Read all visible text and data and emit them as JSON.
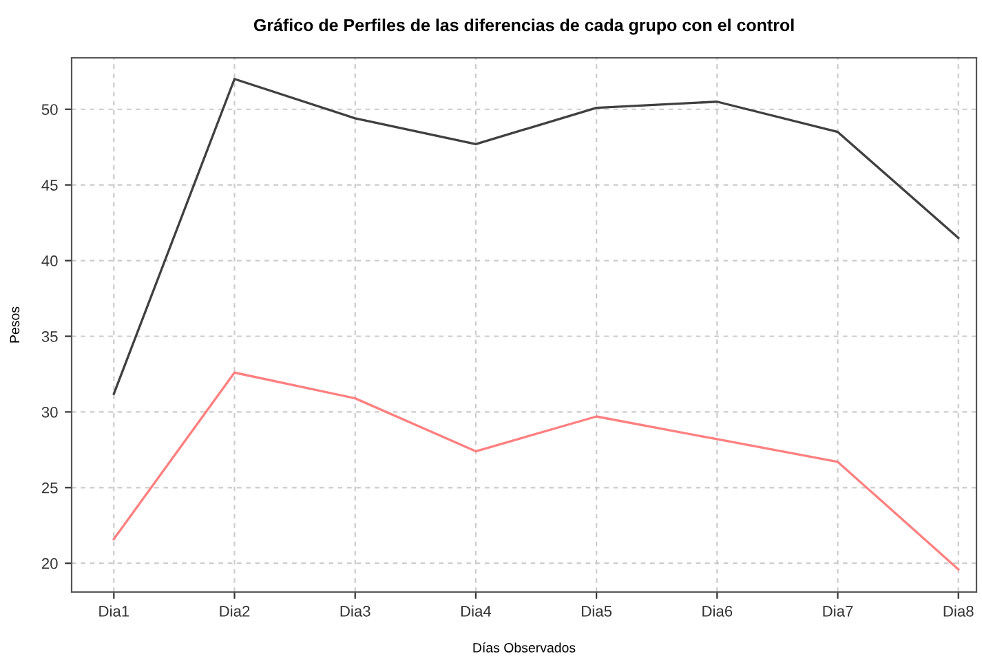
{
  "chart_data": {
    "type": "line",
    "title": "Gráfico de Perfiles de las diferencias de cada grupo con el control",
    "xlabel": "Días Observados",
    "ylabel": "Pesos",
    "categories": [
      "Dia1",
      "Dia2",
      "Dia3",
      "Dia4",
      "Dia5",
      "Dia6",
      "Dia7",
      "Dia8"
    ],
    "series": [
      {
        "color": "#404040",
        "values": [
          31.2,
          52.0,
          49.4,
          47.7,
          50.1,
          50.5,
          48.5,
          41.5
        ]
      },
      {
        "color": "#ff8080",
        "values": [
          21.6,
          32.6,
          30.9,
          27.4,
          29.7,
          28.2,
          26.7,
          19.6
        ]
      }
    ],
    "ylim": [
      18.1,
      53.4
    ],
    "yticks": [
      20,
      25,
      30,
      35,
      40,
      45,
      50
    ],
    "grid": true,
    "marker": "none",
    "line_style": "solid"
  }
}
